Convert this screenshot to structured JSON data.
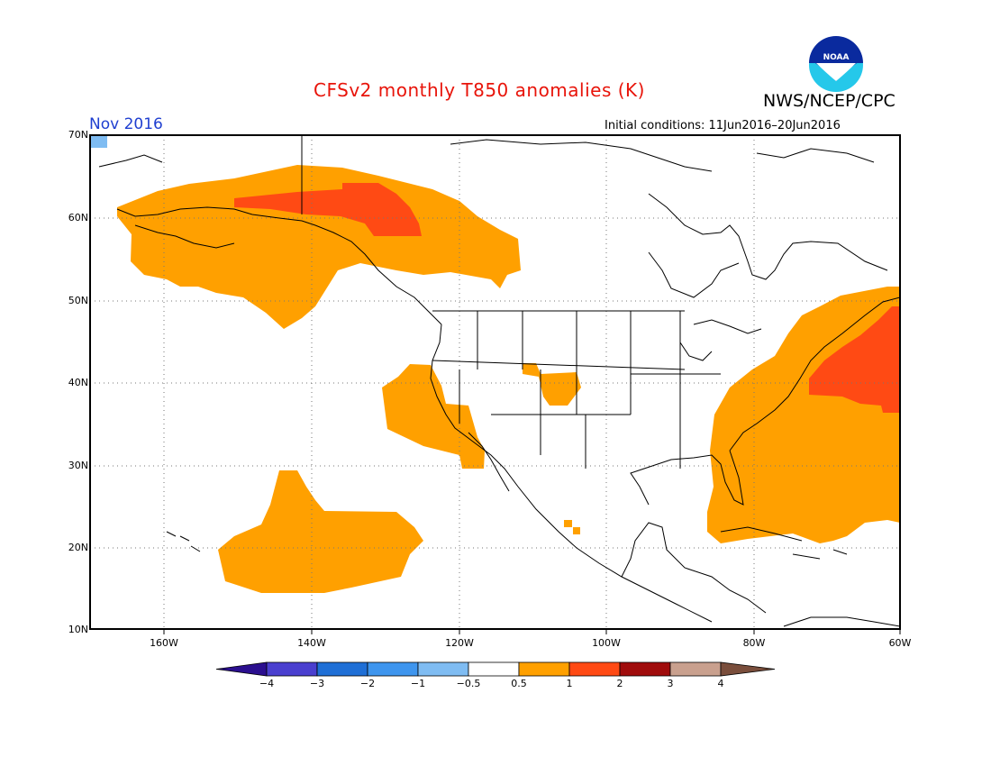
{
  "title": "CFSv2 monthly T850 anomalies (K)",
  "agency": "NWS/NCEP/CPC",
  "logo_text": "NOAA",
  "valid_month": "Nov 2016",
  "initial_conditions": "Initial conditions: 11Jun2016–20Jun2016",
  "lat_labels": [
    "70N",
    "60N",
    "50N",
    "40N",
    "30N",
    "20N",
    "10N"
  ],
  "lon_labels": [
    "160W",
    "140W",
    "120W",
    "100W",
    "80W",
    "60W"
  ],
  "colorbar": {
    "colors": [
      "#2b0f8f",
      "#4a3fcf",
      "#1f6fd6",
      "#3e95ee",
      "#7fbcf2",
      "#ffffff",
      "#ffa000",
      "#ff4a14",
      "#a00c0c",
      "#c9a08e",
      "#7a4e3c"
    ],
    "labels": [
      "−4",
      "−3",
      "−2",
      "−1",
      "−0.5",
      "0.5",
      "1",
      "2",
      "3",
      "4"
    ]
  },
  "anomaly_legend": {
    "gt_0_5_color": "#ffa000",
    "gt_1_color": "#ff4a14",
    "lt_m0_5_color": "#7fbcf2"
  }
}
